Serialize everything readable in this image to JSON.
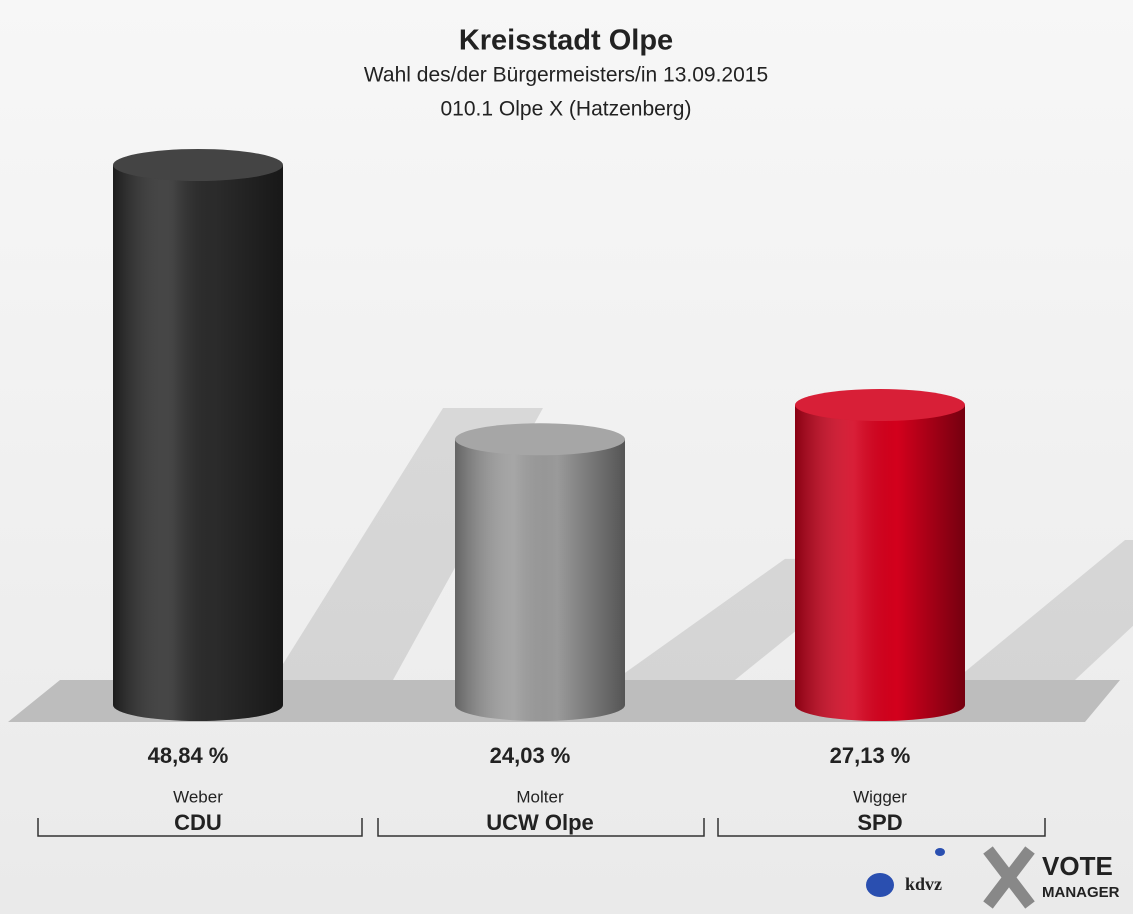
{
  "chart_data": {
    "type": "bar",
    "title": "Kreisstadt Olpe",
    "subtitle": [
      "Wahl des/der Bürgermeisters/in 13.09.2015",
      "010.1 Olpe X (Hatzenberg)"
    ],
    "categories": [
      "Weber",
      "Molter",
      "Wigger"
    ],
    "parties": [
      "CDU",
      "UCW Olpe",
      "SPD"
    ],
    "values": [
      48.84,
      24.03,
      27.13
    ],
    "value_labels": [
      "48,84 %",
      "24,03 %",
      "27,13 %"
    ],
    "colors": [
      "#2b2b2b",
      "#9a9a9a",
      "#d3001c"
    ]
  },
  "logo": {
    "kdvz": "kdvz",
    "vote": "VOTE",
    "manager": "MANAGER"
  }
}
